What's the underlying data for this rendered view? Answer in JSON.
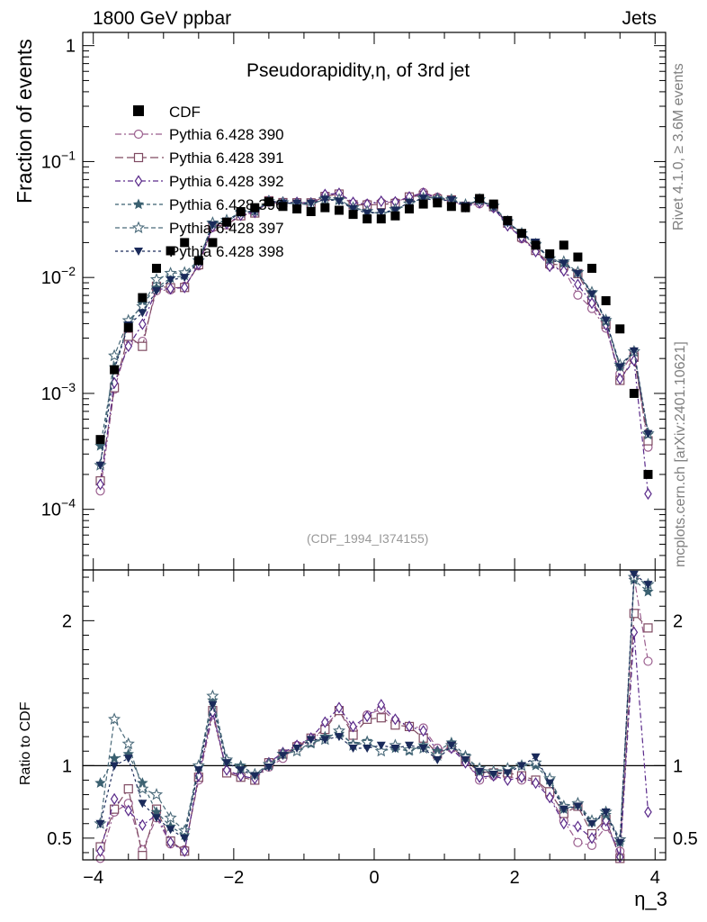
{
  "header": {
    "left": "1800 GeV ppbar",
    "right": "Jets"
  },
  "side_labels": {
    "rivet": "Rivet 4.1.0, ≥ 3.6M events",
    "mcplots": "mcplots.cern.ch [arXiv:2401.10621]"
  },
  "chart_data": {
    "type": "line",
    "title": "Pseudorapidity,η, of 3rd jet",
    "xlabel": "η_3",
    "ylabel": "Fraction of events",
    "ratio_ylabel": "Ratio to CDF",
    "analysis_tag": "(CDF_1994_I374155)",
    "xlim": [
      -4.15,
      4.15
    ],
    "ylim": [
      3e-05,
      1.3
    ],
    "yscale": "log",
    "ratio_ylim": [
      0.35,
      2.35
    ],
    "x_ticks": [
      "−4",
      "−2",
      "0",
      "2",
      "4"
    ],
    "y_ticks": [
      "1",
      "10^−1",
      "10^−2",
      "10^−3",
      "10^−4"
    ],
    "ratio_ticks": [
      "2",
      "1",
      "0.5"
    ],
    "x": [
      -3.9,
      -3.7,
      -3.5,
      -3.3,
      -3.1,
      -2.9,
      -2.7,
      -2.5,
      -2.3,
      -2.1,
      -1.9,
      -1.7,
      -1.5,
      -1.3,
      -1.1,
      -0.9,
      -0.7,
      -0.5,
      -0.3,
      -0.1,
      0.1,
      0.3,
      0.5,
      0.7,
      0.9,
      1.1,
      1.3,
      1.5,
      1.7,
      1.9,
      2.1,
      2.3,
      2.5,
      2.7,
      2.9,
      3.1,
      3.3,
      3.5,
      3.7,
      3.9
    ],
    "data": {
      "name": "CDF",
      "color": "#000000",
      "values": [
        0.0004,
        0.0016,
        0.0037,
        0.0067,
        0.012,
        0.017,
        0.02,
        0.014,
        0.02,
        0.03,
        0.037,
        0.04,
        0.045,
        0.041,
        0.039,
        0.037,
        0.04,
        0.038,
        0.035,
        0.032,
        0.032,
        0.034,
        0.039,
        0.043,
        0.044,
        0.041,
        0.04,
        0.048,
        0.043,
        0.031,
        0.024,
        0.019,
        0.016,
        0.019,
        0.015,
        0.012,
        0.0063,
        0.0036,
        0.001,
        0.0002
      ]
    },
    "series": [
      {
        "name": "Pythia 6.428 390",
        "color": "#9a5e8e",
        "marker": "circle-open",
        "dash": "7,3,2,3",
        "ratio": [
          0.36,
          0.68,
          0.74,
          0.42,
          0.64,
          0.46,
          0.42,
          0.9,
          1.35,
          0.96,
          0.93,
          0.91,
          0.99,
          1.05,
          1.14,
          1.16,
          1.27,
          1.38,
          1.24,
          1.35,
          1.39,
          1.31,
          1.27,
          1.26,
          1.12,
          1.12,
          1.03,
          0.9,
          0.93,
          0.93,
          0.9,
          0.9,
          0.79,
          0.62,
          0.47,
          0.45,
          0.58,
          0.41,
          2.3,
          1.72
        ]
      },
      {
        "name": "Pythia 6.428 391",
        "color": "#7f4a62",
        "marker": "square-open",
        "dash": "9,4",
        "ratio": [
          0.44,
          0.7,
          0.84,
          0.38,
          0.7,
          0.48,
          0.41,
          0.92,
          1.38,
          0.95,
          0.92,
          0.9,
          1.02,
          1.08,
          1.13,
          1.19,
          1.25,
          1.38,
          1.21,
          1.32,
          1.33,
          1.28,
          1.27,
          1.19,
          1.08,
          1.14,
          1.03,
          0.96,
          0.95,
          0.95,
          0.93,
          0.9,
          0.82,
          0.67,
          0.72,
          0.53,
          0.63,
          0.36,
          2.05,
          1.95
        ]
      },
      {
        "name": "Pythia 6.428 392",
        "color": "#5a2a8a",
        "marker": "diamond-open",
        "dash": "6,3,2,3",
        "ratio": [
          0.41,
          0.77,
          0.69,
          0.59,
          0.66,
          0.47,
          0.41,
          0.93,
          1.37,
          0.97,
          0.93,
          0.91,
          1.02,
          1.09,
          1.14,
          1.19,
          1.3,
          1.4,
          1.27,
          1.34,
          1.42,
          1.32,
          1.27,
          1.24,
          1.1,
          1.12,
          1.02,
          0.92,
          0.93,
          0.9,
          0.92,
          0.88,
          0.78,
          0.6,
          0.58,
          0.5,
          0.62,
          0.37,
          1.92,
          0.68
        ]
      },
      {
        "name": "Pythia 6.428 396",
        "color": "#3a6070",
        "marker": "star-filled",
        "dash": "4,3",
        "ratio": [
          0.88,
          1.05,
          1.08,
          0.88,
          0.68,
          0.58,
          0.52,
          0.99,
          1.45,
          1.03,
          1.0,
          0.94,
          1.0,
          1.08,
          1.1,
          1.15,
          1.2,
          1.22,
          1.15,
          1.17,
          1.1,
          1.12,
          1.1,
          1.14,
          1.1,
          1.16,
          1.07,
          0.96,
          0.96,
          0.97,
          1.0,
          1.0,
          0.9,
          0.7,
          0.73,
          0.61,
          0.66,
          0.47,
          2.28,
          2.2
        ]
      },
      {
        "name": "Pythia 6.428 397",
        "color": "#4a6a7a",
        "marker": "star-open",
        "dash": "5,3",
        "ratio": [
          0.6,
          1.32,
          1.15,
          0.84,
          0.8,
          0.64,
          0.55,
          1.0,
          1.48,
          1.04,
          0.98,
          0.94,
          1.01,
          1.08,
          1.1,
          1.16,
          1.18,
          1.24,
          1.14,
          1.16,
          1.1,
          1.14,
          1.11,
          1.12,
          1.07,
          1.14,
          1.06,
          0.98,
          0.96,
          0.98,
          1.0,
          1.02,
          0.91,
          0.72,
          0.74,
          0.62,
          0.68,
          0.49,
          2.3,
          2.25
        ]
      },
      {
        "name": "Pythia 6.428 398",
        "color": "#1a2a5a",
        "marker": "triangle-down-filled",
        "dash": "3,3",
        "ratio": [
          0.6,
          1.0,
          1.05,
          0.74,
          0.64,
          0.56,
          0.5,
          0.97,
          1.42,
          1.02,
          0.97,
          0.93,
          0.99,
          1.07,
          1.12,
          1.18,
          1.18,
          1.2,
          1.12,
          1.12,
          1.14,
          1.12,
          1.14,
          1.12,
          1.04,
          1.14,
          1.04,
          0.96,
          0.94,
          0.95,
          1.0,
          1.06,
          0.88,
          0.7,
          0.72,
          0.6,
          0.68,
          0.47,
          2.32,
          2.25
        ]
      }
    ]
  }
}
